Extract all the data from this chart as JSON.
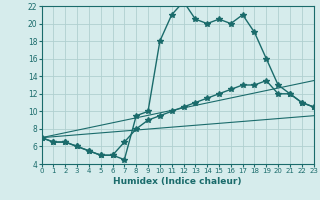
{
  "xlabel": "Humidex (Indice chaleur)",
  "xlim": [
    0,
    23
  ],
  "ylim": [
    4,
    22
  ],
  "xticks": [
    0,
    1,
    2,
    3,
    4,
    5,
    6,
    7,
    8,
    9,
    10,
    11,
    12,
    13,
    14,
    15,
    16,
    17,
    18,
    19,
    20,
    21,
    22,
    23
  ],
  "yticks": [
    4,
    6,
    8,
    10,
    12,
    14,
    16,
    18,
    20,
    22
  ],
  "background_color": "#d6ecec",
  "grid_color": "#b0d0d0",
  "line_color": "#1a6b6b",
  "line1_x": [
    0,
    1,
    2,
    3,
    4,
    5,
    6,
    7,
    8,
    9,
    10,
    11,
    12,
    13,
    14,
    15,
    16,
    17,
    18,
    19,
    20,
    21,
    22,
    23
  ],
  "line1_y": [
    7,
    6.5,
    6.5,
    6,
    5.5,
    5,
    5,
    4.5,
    9.5,
    10,
    18,
    21,
    22.5,
    20.5,
    20,
    20.5,
    20,
    21,
    19,
    16,
    13,
    12,
    11,
    10.5
  ],
  "line2_x": [
    0,
    1,
    2,
    3,
    4,
    5,
    6,
    7,
    8,
    9,
    10,
    11,
    12,
    13,
    14,
    15,
    16,
    17,
    18,
    19,
    20,
    21,
    22,
    23
  ],
  "line2_y": [
    7,
    6.5,
    6.5,
    6,
    5.5,
    5,
    5,
    6.5,
    8,
    9,
    9.5,
    10,
    10.5,
    11,
    11.5,
    12,
    12.5,
    13,
    13,
    13.5,
    12,
    12,
    11,
    10.5
  ],
  "line3_x": [
    0,
    23
  ],
  "line3_y": [
    7,
    13.5
  ],
  "line4_x": [
    0,
    23
  ],
  "line4_y": [
    7,
    9.5
  ],
  "marker": "*",
  "markersize": 4,
  "lw1": 1.0,
  "lw2": 1.0,
  "lw3": 0.8,
  "lw4": 0.8
}
